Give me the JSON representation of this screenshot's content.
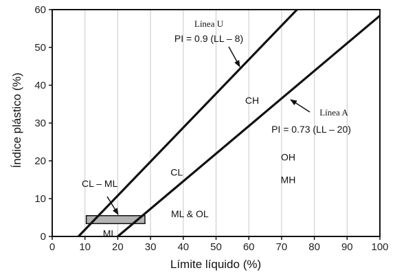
{
  "chart_data": {
    "type": "line",
    "xlabel": "Límite líquido (%)",
    "ylabel": "Índice plástico (%)",
    "xlim": [
      0,
      100
    ],
    "ylim": [
      0,
      60
    ],
    "xticks": [
      0,
      10,
      20,
      30,
      40,
      50,
      60,
      70,
      80,
      90,
      100
    ],
    "yticks": [
      0,
      10,
      20,
      30,
      40,
      50,
      60
    ],
    "grid": "vertical",
    "series": [
      {
        "name": "Línea U",
        "equation": "PI = 0.9 (LL – 8)",
        "x": [
          8,
          74.7
        ],
        "y": [
          0,
          60
        ]
      },
      {
        "name": "Línea A",
        "equation": "PI = 0.73 (LL – 20)",
        "x": [
          20,
          100
        ],
        "y": [
          0,
          58.4
        ]
      }
    ],
    "band": {
      "x": [
        10.4,
        28.3
      ],
      "y": [
        3.4,
        5.5
      ],
      "label": "CL – ML"
    },
    "region_labels": [
      {
        "text": "CH",
        "x": 61,
        "y": 36
      },
      {
        "text": "OH",
        "x": 72,
        "y": 21
      },
      {
        "text": "MH",
        "x": 72,
        "y": 15
      },
      {
        "text": "CL",
        "x": 38,
        "y": 17
      },
      {
        "text": "ML & OL",
        "x": 42,
        "y": 6
      },
      {
        "text": "ML",
        "x": 17.5,
        "y": 0.8
      },
      {
        "text": "CL – ML",
        "x": 14.5,
        "y": 14
      }
    ],
    "annotations": {
      "u_line_name": "Línea U",
      "u_line_equation": "PI = 0.9 (LL – 8)",
      "a_line_name": "Línea A",
      "a_line_equation": "PI = 0.73 (LL – 20)"
    }
  }
}
